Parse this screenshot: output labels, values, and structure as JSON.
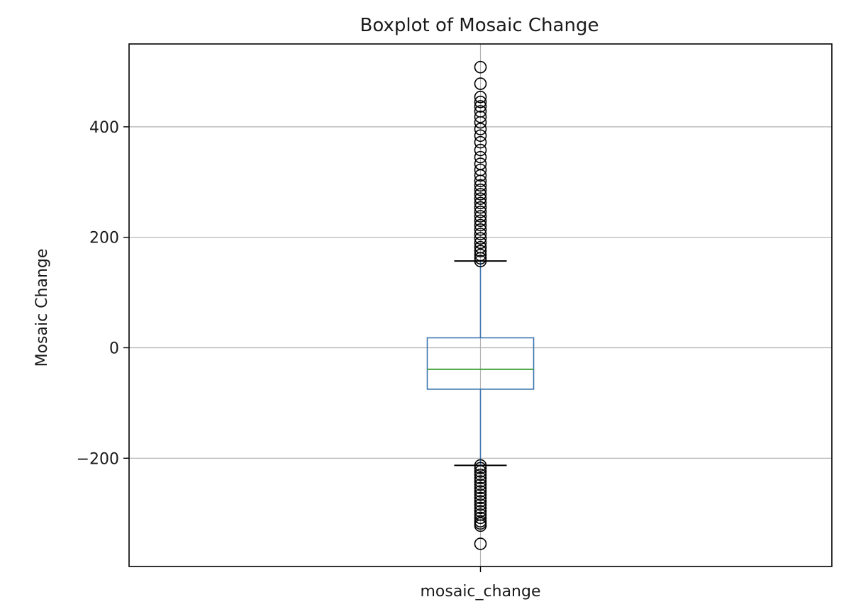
{
  "chart_data": {
    "type": "box",
    "title": "Boxplot of Mosaic Change",
    "xlabel": "",
    "ylabel": "Mosaic Change",
    "categories": [
      "mosaic_change"
    ],
    "ylim": [
      -396,
      550
    ],
    "yticks": [
      400,
      200,
      0,
      -200
    ],
    "ytick_labels": [
      "400",
      "200",
      "0",
      "−200"
    ],
    "grid": true,
    "series": [
      {
        "category": "mosaic_change",
        "whisker_low": -213,
        "q1": -75,
        "median": -39,
        "q3": 18,
        "whisker_high": 157,
        "fliers_high": [
          157,
          162,
          168,
          175,
          182,
          190,
          198,
          206,
          214,
          222,
          230,
          238,
          246,
          254,
          262,
          270,
          278,
          286,
          294,
          302,
          312,
          322,
          333,
          345,
          358,
          372,
          384,
          396,
          408,
          418,
          428,
          437,
          445,
          454,
          478,
          508
        ],
        "fliers_low": [
          -213,
          -218,
          -224,
          -230,
          -236,
          -242,
          -248,
          -254,
          -260,
          -266,
          -272,
          -278,
          -284,
          -290,
          -296,
          -302,
          -308,
          -314,
          -318,
          -322,
          -355
        ]
      }
    ],
    "colors": {
      "box": "#3b75af",
      "median": "#48a23f",
      "whisker_cap": "#000000",
      "flier": "#000000",
      "grid": "#b0b0b0"
    }
  }
}
